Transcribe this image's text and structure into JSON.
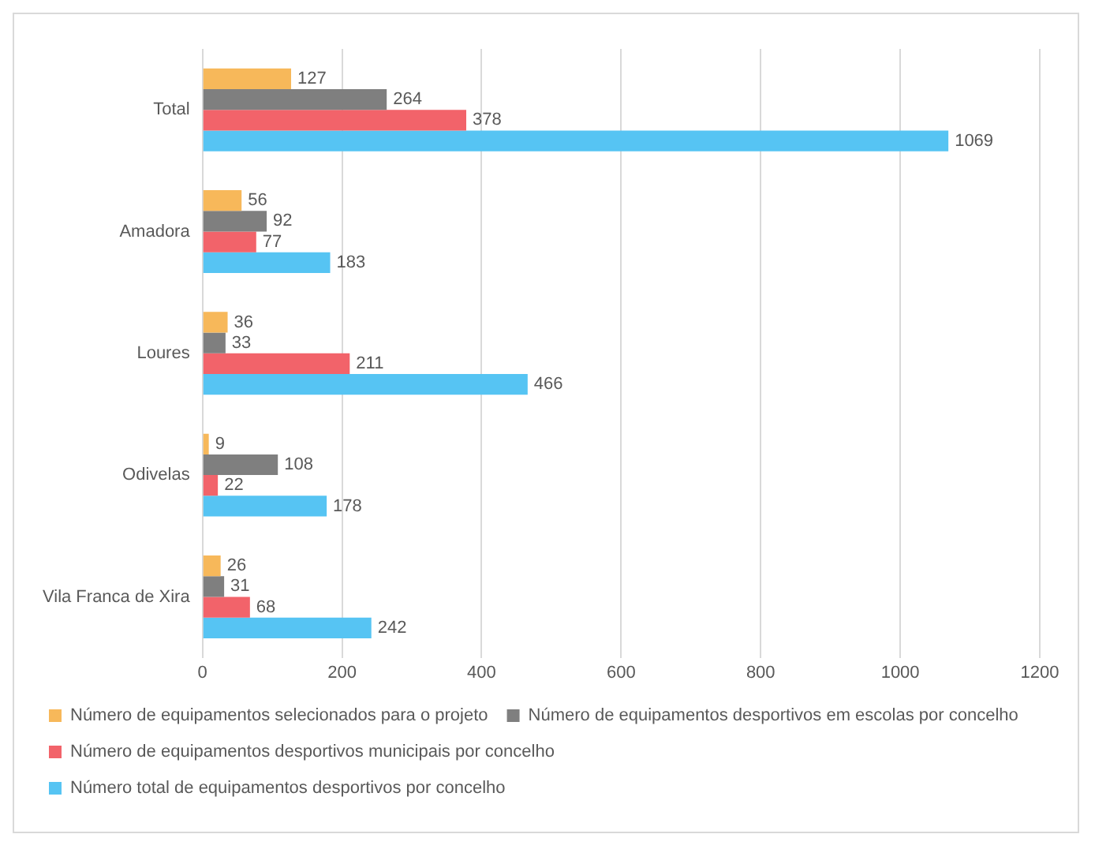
{
  "chart_data": {
    "type": "bar",
    "orientation": "horizontal",
    "categories": [
      "Total",
      "Amadora",
      "Loures",
      "Odivelas",
      "Vila Franca de Xira"
    ],
    "series": [
      {
        "name": "Número de equipamentos selecionados para o projeto",
        "color": "#f7b85a",
        "values": [
          127,
          56,
          36,
          9,
          26
        ]
      },
      {
        "name": "Número de equipamentos desportivos em escolas por concelho",
        "color": "#7f7f7f",
        "values": [
          264,
          92,
          33,
          108,
          31
        ]
      },
      {
        "name": "Número de equipamentos desportivos municipais por concelho",
        "color": "#f2636a",
        "values": [
          378,
          77,
          211,
          22,
          68
        ]
      },
      {
        "name": "Número total de equipamentos desportivos por concelho",
        "color": "#56c4f3",
        "values": [
          1069,
          183,
          466,
          178,
          242
        ]
      }
    ],
    "xlim": [
      0,
      1200
    ],
    "xticks": [
      0,
      200,
      400,
      600,
      800,
      1000,
      1200
    ],
    "grid": "x",
    "legend": "bottom",
    "data_labels": true
  }
}
